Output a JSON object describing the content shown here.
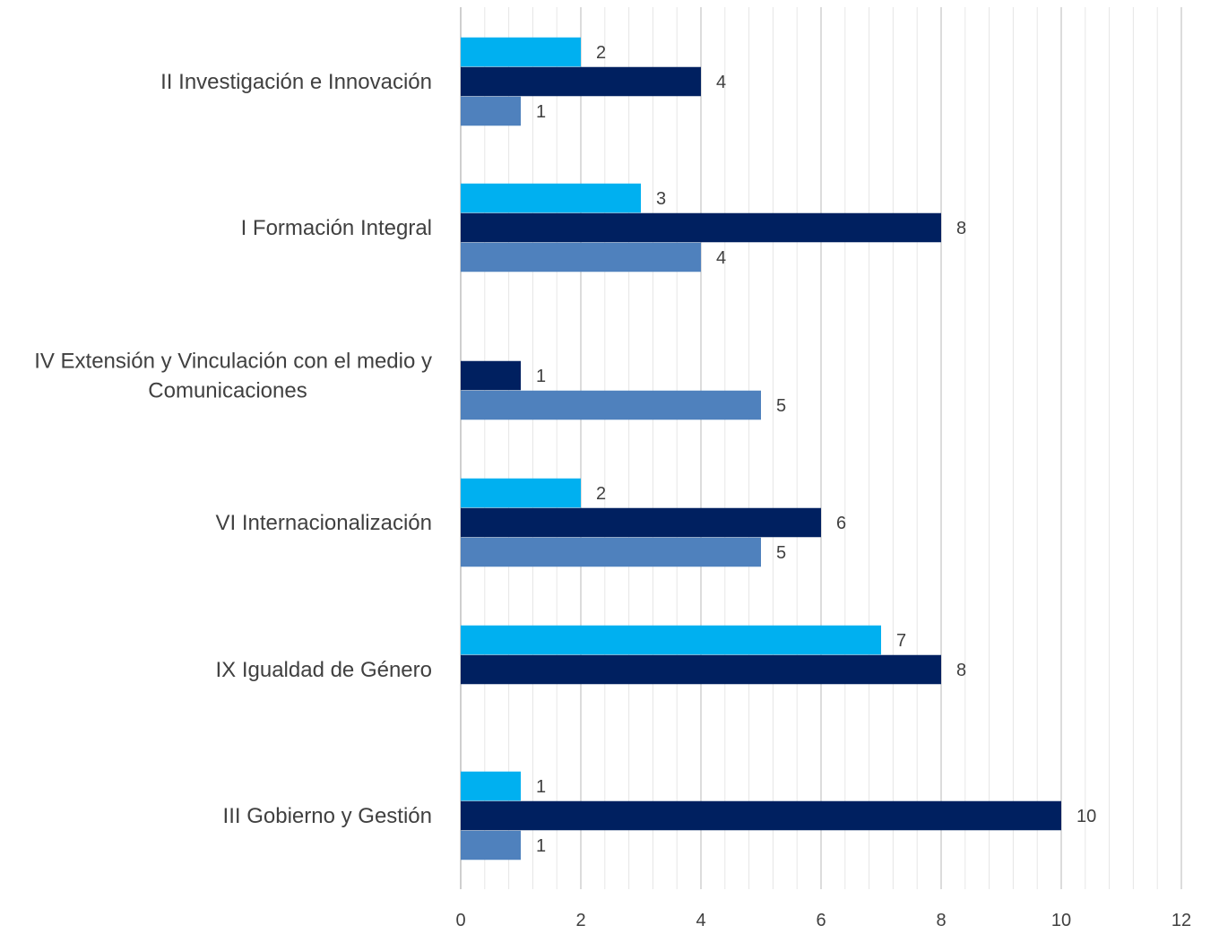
{
  "chart_data": {
    "type": "bar",
    "orientation": "horizontal",
    "title": "",
    "xlabel": "",
    "ylabel": "",
    "xlim": [
      0,
      12
    ],
    "major_ticks": [
      0,
      2,
      4,
      6,
      8,
      10,
      12
    ],
    "minor_tick_step": 0.4,
    "grid": true,
    "legend": "none",
    "categories": [
      [
        "II Investigación e Innovación"
      ],
      [
        "I Formación Integral"
      ],
      [
        "IV Extensión y Vinculación con el medio y",
        "Comunicaciones"
      ],
      [
        "VI Internacionalización"
      ],
      [
        "IX Igualdad de Género"
      ],
      [
        "III Gobierno y Gestión"
      ]
    ],
    "series": [
      {
        "color": "#00B0F0",
        "values": [
          2,
          3,
          null,
          2,
          7,
          1
        ]
      },
      {
        "color": "#002060",
        "values": [
          4,
          8,
          1,
          6,
          8,
          10
        ]
      },
      {
        "color": "#4F81BD",
        "values": [
          1,
          4,
          5,
          5,
          null,
          1
        ]
      }
    ],
    "colors": {
      "major_grid": "#D0D0D0",
      "minor_grid": "#E6E6E6",
      "axis_line": "#BFBFBF",
      "text": "#404040"
    }
  }
}
